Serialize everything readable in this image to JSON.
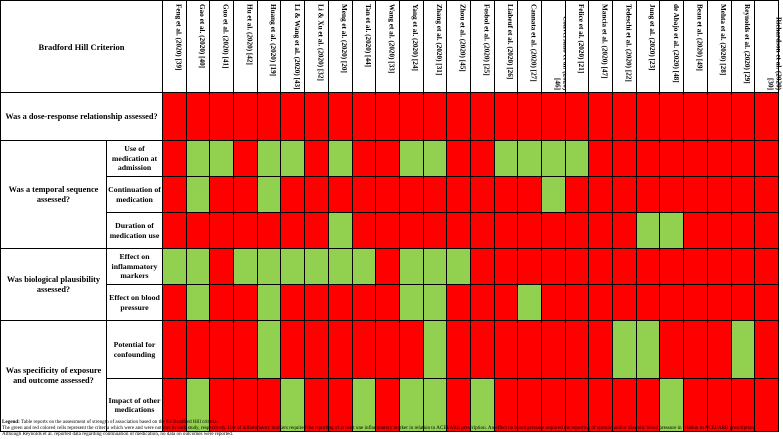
{
  "header": {
    "criterion_label": "Bradford Hill Criterion"
  },
  "studies": [
    "Feng et al. (2020) [39]",
    "Gao et al. (2020) [40]",
    "Guo et al. (2020) [41]",
    "Hu et al. (2020) [42]",
    "Huang et al. (2020) [19]",
    "Li & Wang et al. (2020) [43]",
    "Li & Xu et al. (2020) [32]",
    "Meng et al. (2020) [20]",
    "Tan et al. (2020) [44]",
    "Wang et al. (2020) [33]",
    "Yang et al. (2020) [24]",
    "Zhang et al. (2020) [31]",
    "Zhou et al. (2020) [45]",
    "Fosbol et al. (2020) [25]",
    "Liabeuf et al. (2020) [26]",
    "Cannata et al. (2020) [27]",
    "Conversano et al. (2020) [46]",
    "Felice et al. (2020) [21]",
    "Mancia et al. (2020) [47]",
    "Tedeschi et al. (2020) [22]",
    "Jung et al. (2020) [23]",
    "de Abajo et al. (2020) [48]",
    "Bean et al. (2020) [49]",
    "Mehta et al. (2020) [28]",
    "Reynolds et al. (2020) [29]",
    "Richardson et al. (2020) [30]"
  ],
  "groups": [
    {
      "question": "Was a dose-response relationship assessed?",
      "rows": [
        {
          "label": "",
          "cells": "RRRRRRRRRRRRRRRRRRRRRRRRRR"
        }
      ]
    },
    {
      "question": "Was a temporal sequence assessed?",
      "rows": [
        {
          "label": "Use of medication at admission",
          "cells": "RGGRGGRGRRGGRRGGGGRRRRRRRR"
        },
        {
          "label": "Continuation of medication",
          "cells": "RGRRGRRRRRRRRRRRGRRRRRRRRR"
        },
        {
          "label": "Duration of medication use",
          "cells": "RRRRRRRGRRRRRRRRRRRRGGRRRR"
        }
      ]
    },
    {
      "question": "Was biological plausibility assessed?",
      "rows": [
        {
          "label": "Effect on inflammatory markers",
          "cells": "GGRGGGGGGRGGGRRRRRRRRRRRRR"
        },
        {
          "label": "Effect on blood pressure",
          "cells": "RGRRGRRRRRGGRRRGRRRRRRRRRR"
        }
      ]
    },
    {
      "question": "Was specificity of exposure and outcome assessed?",
      "rows": [
        {
          "label": "Potential for confounding",
          "cells": "RRRRGRRRRRRGRRRRRRRGGRRRGR"
        },
        {
          "label": "Impact of other medications",
          "cells": "RGRRRGRRGRGGRGRRRRRRRGRRRR"
        }
      ]
    }
  ],
  "legend": {
    "title": "Legend:",
    "line1": " Table reports on the assessment of strength of association based on the Sir Bradford Hill criteria.",
    "line2": "The green and red colored cells represent the criteria which were and were not met in each study, respectively. Use of inflammatory markers required the reporting of at least one inflammatory marker in relation to ACEI/ARB prescription. An effect on blood pressure required the reporting of systolic and/or diastolic blood pressure in relation to ACEI/ARB prescription. Although Reynolds et al. reported data regarding continuation of medication, no data on outcomes were reported."
  },
  "colors": {
    "met": "#92d050",
    "not_met": "#ff0000"
  }
}
